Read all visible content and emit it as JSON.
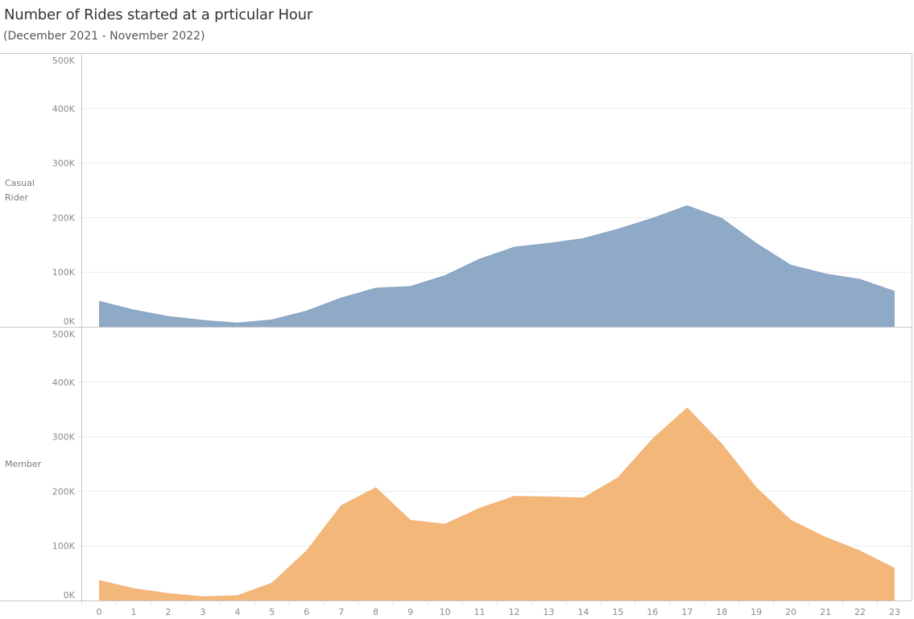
{
  "header": {
    "title": "Number of Rides started at a prticular Hour",
    "subtitle": "(December 2021 - November 2022)"
  },
  "colors": {
    "casual": "#8faac7",
    "casual_line": "#6f8fb5",
    "member": "#f4b77a",
    "member_line": "#eea664",
    "gridline": "#ececec",
    "axis": "#c8c8c8"
  },
  "chart_data": {
    "type": "area",
    "title": "Number of Rides started at a prticular Hour",
    "subtitle": "(December 2021 - November 2022)",
    "xlabel": "",
    "ylabel": "",
    "x": [
      0,
      1,
      2,
      3,
      4,
      5,
      6,
      7,
      8,
      9,
      10,
      11,
      12,
      13,
      14,
      15,
      16,
      17,
      18,
      19,
      20,
      21,
      22,
      23
    ],
    "ylim": [
      0,
      500000
    ],
    "yticks": [
      "0K",
      "100K",
      "200K",
      "300K",
      "400K",
      "500K"
    ],
    "grid": true,
    "legend": "row labels on left",
    "series": [
      {
        "name": "Casual Rider",
        "label_lines": [
          "Casual",
          "Rider"
        ],
        "values": [
          47000,
          31000,
          19000,
          12000,
          7000,
          13000,
          29000,
          53000,
          71000,
          74000,
          94000,
          124000,
          146000,
          153000,
          162000,
          179000,
          199000,
          222000,
          199000,
          153000,
          113000,
          97000,
          87000,
          65000
        ]
      },
      {
        "name": "Member",
        "label_lines": [
          "Member"
        ],
        "values": [
          37000,
          22000,
          13000,
          7000,
          9000,
          32000,
          91000,
          174000,
          207000,
          147000,
          140000,
          169000,
          191000,
          190000,
          188000,
          225000,
          296000,
          353000,
          287000,
          207000,
          147000,
          116000,
          91000,
          59000
        ]
      }
    ]
  }
}
